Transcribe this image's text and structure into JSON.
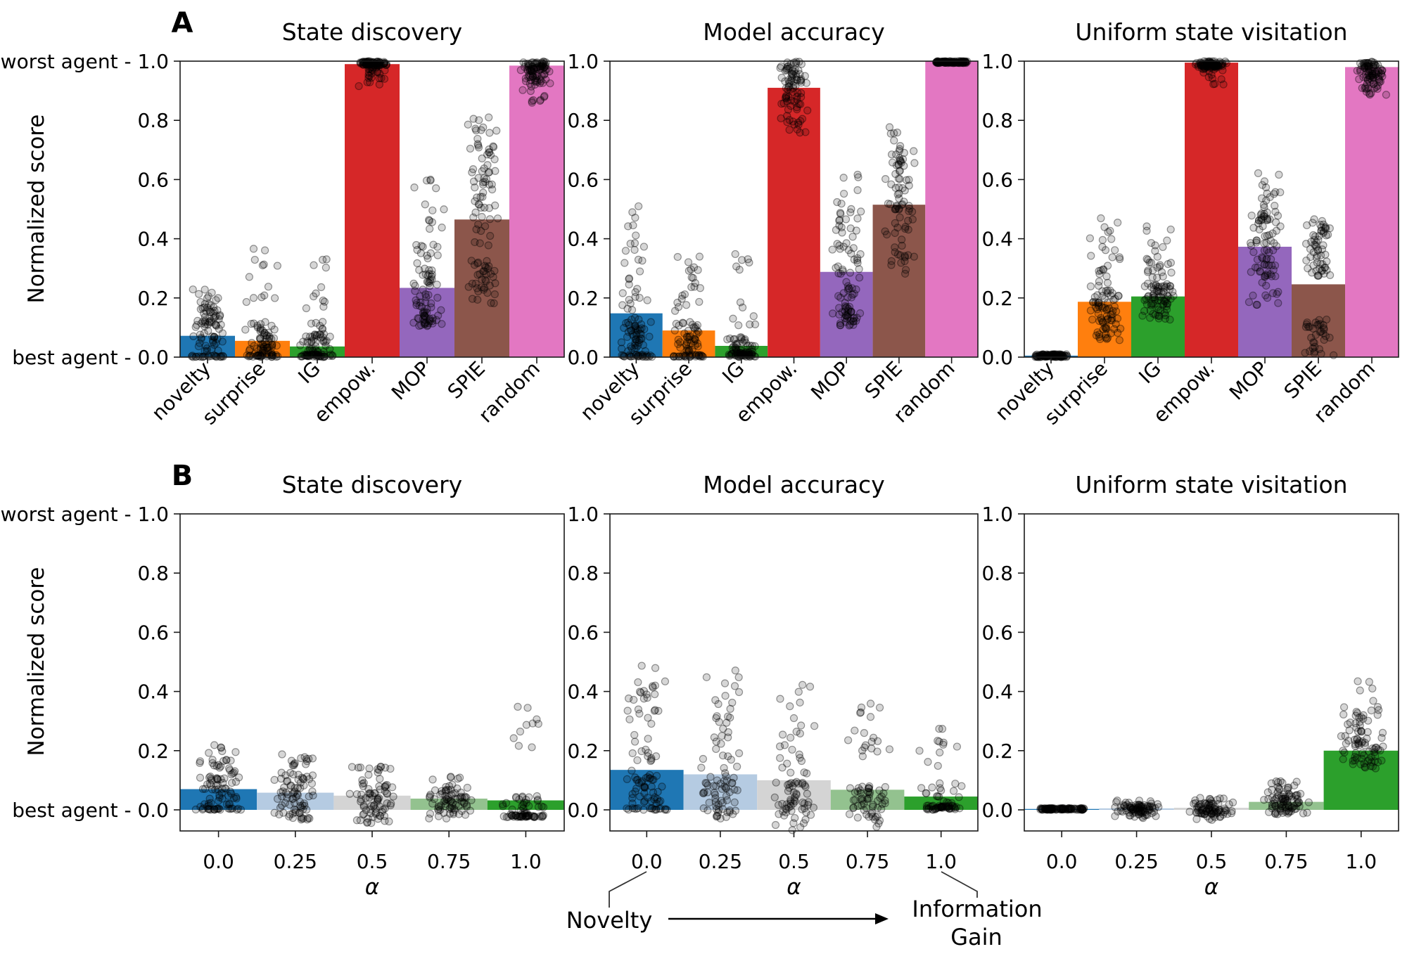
{
  "figure": {
    "panel_a_label": "A",
    "panel_b_label": "B",
    "ylabel": "Normalized score",
    "worst_tick_prefix": "worst agent",
    "best_tick_prefix": "best agent",
    "annotation": {
      "left": "Novelty",
      "right_line1": "Information",
      "right_line2": "Gain"
    }
  },
  "chart_data": [
    {
      "type": "bar",
      "panel": "A",
      "title": "State discovery",
      "categories": [
        "novelty",
        "surprise",
        "IG",
        "empow.",
        "MOP",
        "SPIE",
        "random"
      ],
      "values": [
        0.072,
        0.055,
        0.036,
        0.99,
        0.234,
        0.465,
        0.985
      ],
      "bar_colors": [
        "#1f77b4",
        "#ff7f0e",
        "#2ca02c",
        "#d62728",
        "#9467bd",
        "#8c564b",
        "#e377c2"
      ],
      "ylim": [
        0.0,
        1.0
      ],
      "yticks": [
        "1.0",
        "0.8",
        "0.6",
        "0.4",
        "0.2",
        "0.0"
      ],
      "ytick_prefixes": {
        "1.0": "worst agent",
        "0.0": "best agent"
      },
      "xlabel": null,
      "rotate_xticks": true,
      "scatter": [
        [
          [
            22,
            0.0,
            0.006
          ],
          [
            20,
            0.02,
            0.07
          ],
          [
            45,
            0.07,
            0.17
          ],
          [
            12,
            0.17,
            0.23
          ]
        ],
        [
          [
            30,
            0.0,
            0.008
          ],
          [
            45,
            0.01,
            0.09
          ],
          [
            12,
            0.09,
            0.13
          ],
          [
            8,
            0.17,
            0.31
          ],
          [
            5,
            0.31,
            0.375
          ]
        ],
        [
          [
            40,
            0.0,
            0.01
          ],
          [
            38,
            0.01,
            0.08
          ],
          [
            6,
            0.08,
            0.12
          ],
          [
            7,
            0.15,
            0.3
          ],
          [
            4,
            0.3,
            0.375
          ]
        ],
        [
          [
            70,
            0.985,
            1.0
          ],
          [
            22,
            0.94,
            0.985
          ],
          [
            4,
            0.915,
            0.94
          ]
        ],
        [
          [
            30,
            0.105,
            0.15
          ],
          [
            40,
            0.15,
            0.3
          ],
          [
            12,
            0.3,
            0.38
          ],
          [
            8,
            0.42,
            0.52
          ],
          [
            5,
            0.52,
            0.615
          ]
        ],
        [
          [
            6,
            0.155,
            0.22
          ],
          [
            30,
            0.22,
            0.33
          ],
          [
            10,
            0.37,
            0.47
          ],
          [
            15,
            0.47,
            0.57
          ],
          [
            30,
            0.57,
            0.72
          ],
          [
            12,
            0.72,
            0.82
          ]
        ],
        [
          [
            55,
            0.965,
            1.0
          ],
          [
            30,
            0.92,
            0.965
          ],
          [
            8,
            0.865,
            0.92
          ],
          [
            2,
            0.84,
            0.865
          ]
        ]
      ]
    },
    {
      "type": "bar",
      "panel": "A",
      "title": "Model accuracy",
      "categories": [
        "novelty",
        "surprise",
        "IG",
        "empow.",
        "MOP",
        "SPIE",
        "random"
      ],
      "values": [
        0.148,
        0.09,
        0.038,
        0.91,
        0.288,
        0.515,
        1.0
      ],
      "bar_colors": [
        "#1f77b4",
        "#ff7f0e",
        "#2ca02c",
        "#d62728",
        "#9467bd",
        "#8c564b",
        "#e377c2"
      ],
      "ylim": [
        0.0,
        1.0
      ],
      "yticks": [
        "1.0",
        "0.8",
        "0.6",
        "0.4",
        "0.2",
        "0.0"
      ],
      "ytick_prefixes": {},
      "xlabel": null,
      "rotate_xticks": true,
      "scatter": [
        [
          [
            25,
            0.0,
            0.008
          ],
          [
            45,
            0.02,
            0.12
          ],
          [
            6,
            0.12,
            0.18
          ],
          [
            15,
            0.18,
            0.35
          ],
          [
            11,
            0.35,
            0.51
          ]
        ],
        [
          [
            28,
            0.0,
            0.008
          ],
          [
            42,
            0.015,
            0.12
          ],
          [
            14,
            0.14,
            0.27
          ],
          [
            7,
            0.27,
            0.35
          ]
        ],
        [
          [
            45,
            0.0,
            0.015
          ],
          [
            32,
            0.015,
            0.07
          ],
          [
            7,
            0.09,
            0.19
          ],
          [
            6,
            0.26,
            0.35
          ]
        ],
        [
          [
            40,
            0.93,
            1.0
          ],
          [
            42,
            0.79,
            0.93
          ],
          [
            6,
            0.755,
            0.79
          ]
        ],
        [
          [
            35,
            0.105,
            0.17
          ],
          [
            15,
            0.17,
            0.25
          ],
          [
            30,
            0.25,
            0.44
          ],
          [
            12,
            0.44,
            0.54
          ],
          [
            5,
            0.54,
            0.625
          ]
        ],
        [
          [
            15,
            0.28,
            0.38
          ],
          [
            12,
            0.38,
            0.48
          ],
          [
            45,
            0.48,
            0.68
          ],
          [
            12,
            0.68,
            0.78
          ]
        ],
        [
          [
            100,
            0.993,
            1.0
          ]
        ]
      ]
    },
    {
      "type": "bar",
      "panel": "A",
      "title": "Uniform state visitation",
      "categories": [
        "novelty",
        "surprise",
        "IG",
        "empow.",
        "MOP",
        "SPIE",
        "random"
      ],
      "values": [
        0.005,
        0.187,
        0.205,
        0.995,
        0.373,
        0.246,
        0.98
      ],
      "bar_colors": [
        "#1f77b4",
        "#ff7f0e",
        "#2ca02c",
        "#d62728",
        "#9467bd",
        "#8c564b",
        "#e377c2"
      ],
      "ylim": [
        0.0,
        1.0
      ],
      "yticks": [
        "1.0",
        "0.8",
        "0.6",
        "0.4",
        "0.2",
        "0.0"
      ],
      "ytick_prefixes": {},
      "xlabel": null,
      "rotate_xticks": true,
      "scatter": [
        [
          [
            100,
            0.0,
            0.01
          ]
        ],
        [
          [
            12,
            0.04,
            0.09
          ],
          [
            45,
            0.09,
            0.19
          ],
          [
            25,
            0.19,
            0.3
          ],
          [
            10,
            0.3,
            0.4
          ],
          [
            6,
            0.4,
            0.47
          ]
        ],
        [
          [
            15,
            0.12,
            0.16
          ],
          [
            50,
            0.16,
            0.24
          ],
          [
            22,
            0.24,
            0.32
          ],
          [
            8,
            0.32,
            0.4
          ],
          [
            3,
            0.4,
            0.455
          ]
        ],
        [
          [
            80,
            0.98,
            1.0
          ],
          [
            14,
            0.935,
            0.98
          ],
          [
            3,
            0.92,
            0.935
          ]
        ],
        [
          [
            12,
            0.175,
            0.27
          ],
          [
            45,
            0.27,
            0.42
          ],
          [
            25,
            0.42,
            0.5
          ],
          [
            10,
            0.5,
            0.57
          ],
          [
            5,
            0.57,
            0.63
          ]
        ],
        [
          [
            6,
            0.0,
            0.02
          ],
          [
            28,
            0.02,
            0.13
          ],
          [
            45,
            0.27,
            0.42
          ],
          [
            14,
            0.42,
            0.47
          ]
        ],
        [
          [
            60,
            0.945,
            1.0
          ],
          [
            25,
            0.905,
            0.945
          ],
          [
            5,
            0.88,
            0.905
          ]
        ]
      ]
    },
    {
      "type": "bar",
      "panel": "B",
      "title": "State discovery",
      "categories": [
        "0.0",
        "0.25",
        "0.5",
        "0.75",
        "1.0"
      ],
      "values": [
        0.07,
        0.058,
        0.048,
        0.038,
        0.032
      ],
      "bar_colors": [
        "#1f77b4",
        "#b5cbe2",
        "#d4d4d4",
        "#93c28f",
        "#2ca02c"
      ],
      "ylim": [
        -0.071,
        1.0
      ],
      "yticks": [
        "1.0",
        "0.8",
        "0.6",
        "0.4",
        "0.2",
        "0.0"
      ],
      "ytick_prefixes": {
        "1.0": "worst agent",
        "0.0": "best agent"
      },
      "xlabel": "α",
      "rotate_xticks": false,
      "scatter": [
        [
          [
            22,
            0.0,
            0.005
          ],
          [
            20,
            0.01,
            0.06
          ],
          [
            42,
            0.06,
            0.16
          ],
          [
            12,
            0.16,
            0.22
          ]
        ],
        [
          [
            18,
            -0.035,
            0.0
          ],
          [
            40,
            0.0,
            0.09
          ],
          [
            22,
            0.09,
            0.16
          ],
          [
            8,
            0.16,
            0.2
          ]
        ],
        [
          [
            20,
            -0.045,
            0.0
          ],
          [
            45,
            0.0,
            0.09
          ],
          [
            15,
            0.09,
            0.16
          ]
        ],
        [
          [
            15,
            -0.03,
            0.0
          ],
          [
            55,
            0.0,
            0.07
          ],
          [
            10,
            0.07,
            0.115
          ]
        ],
        [
          [
            40,
            -0.025,
            -0.018
          ],
          [
            30,
            -0.015,
            0.05
          ],
          [
            4,
            0.2,
            0.27
          ],
          [
            6,
            0.27,
            0.37
          ]
        ]
      ]
    },
    {
      "type": "bar",
      "panel": "B",
      "title": "Model accuracy",
      "categories": [
        "0.0",
        "0.25",
        "0.5",
        "0.75",
        "1.0"
      ],
      "values": [
        0.135,
        0.12,
        0.1,
        0.068,
        0.045
      ],
      "bar_colors": [
        "#1f77b4",
        "#b5cbe2",
        "#d4d4d4",
        "#93c28f",
        "#2ca02c"
      ],
      "ylim": [
        -0.071,
        1.0
      ],
      "yticks": [
        "1.0",
        "0.8",
        "0.6",
        "0.4",
        "0.2",
        "0.0"
      ],
      "ytick_prefixes": {},
      "xlabel": "α",
      "rotate_xticks": false,
      "scatter": [
        [
          [
            18,
            0.0,
            0.006
          ],
          [
            40,
            0.02,
            0.12
          ],
          [
            7,
            0.13,
            0.19
          ],
          [
            20,
            0.19,
            0.38
          ],
          [
            12,
            0.38,
            0.51
          ]
        ],
        [
          [
            12,
            -0.04,
            0.0
          ],
          [
            38,
            0.0,
            0.1
          ],
          [
            8,
            0.1,
            0.17
          ],
          [
            18,
            0.17,
            0.33
          ],
          [
            11,
            0.33,
            0.48
          ]
        ],
        [
          [
            14,
            -0.075,
            0.0
          ],
          [
            40,
            0.0,
            0.1
          ],
          [
            16,
            0.11,
            0.28
          ],
          [
            9,
            0.28,
            0.44
          ]
        ],
        [
          [
            14,
            -0.06,
            0.0
          ],
          [
            42,
            0.0,
            0.08
          ],
          [
            13,
            0.17,
            0.3
          ],
          [
            6,
            0.3,
            0.36
          ]
        ],
        [
          [
            45,
            0.0,
            0.015
          ],
          [
            18,
            0.015,
            0.09
          ],
          [
            4,
            0.14,
            0.2
          ],
          [
            7,
            0.2,
            0.33
          ]
        ]
      ]
    },
    {
      "type": "bar",
      "panel": "B",
      "title": "Uniform state visitation",
      "categories": [
        "0.0",
        "0.25",
        "0.5",
        "0.75",
        "1.0"
      ],
      "values": [
        0.003,
        0.005,
        0.007,
        0.027,
        0.2
      ],
      "bar_colors": [
        "#1f77b4",
        "#b5cbe2",
        "#d4d4d4",
        "#93c28f",
        "#2ca02c"
      ],
      "ylim": [
        -0.071,
        1.0
      ],
      "yticks": [
        "1.0",
        "0.8",
        "0.6",
        "0.4",
        "0.2",
        "0.0"
      ],
      "ytick_prefixes": {},
      "xlabel": "α",
      "rotate_xticks": false,
      "scatter": [
        [
          [
            100,
            0.0,
            0.006
          ]
        ],
        [
          [
            12,
            -0.03,
            -0.012
          ],
          [
            70,
            -0.012,
            0.018
          ],
          [
            8,
            0.018,
            0.032
          ]
        ],
        [
          [
            10,
            -0.035,
            -0.015
          ],
          [
            68,
            -0.015,
            0.025
          ],
          [
            8,
            0.025,
            0.042
          ]
        ],
        [
          [
            15,
            -0.015,
            0.0
          ],
          [
            55,
            0.0,
            0.05
          ],
          [
            20,
            0.05,
            0.1
          ]
        ],
        [
          [
            55,
            0.14,
            0.25
          ],
          [
            22,
            0.25,
            0.33
          ],
          [
            6,
            0.33,
            0.39
          ],
          [
            4,
            0.39,
            0.45
          ]
        ]
      ]
    }
  ]
}
